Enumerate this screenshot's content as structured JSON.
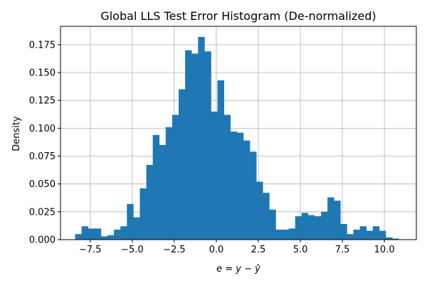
{
  "chart_data": {
    "type": "histogram",
    "title": "Global LLS Test Error Histogram (De-normalized)",
    "xlabel_parts": {
      "lhs": "e",
      "eq": " = ",
      "y1": "y",
      "minus": " − ",
      "y2": "ŷ"
    },
    "ylabel": "Density",
    "xlim": [
      -9.27,
      11.9
    ],
    "ylim": [
      0.0,
      0.1915
    ],
    "grid": true,
    "bar_color": "#1f77b4",
    "x_ticks": [
      {
        "value": -7.5,
        "label": "−7.5"
      },
      {
        "value": -5.0,
        "label": "−5.0"
      },
      {
        "value": -2.5,
        "label": "−2.5"
      },
      {
        "value": 0.0,
        "label": "0.0"
      },
      {
        "value": 2.5,
        "label": "2.5"
      },
      {
        "value": 5.0,
        "label": "5.0"
      },
      {
        "value": 7.5,
        "label": "7.5"
      },
      {
        "value": 10.0,
        "label": "10.0"
      }
    ],
    "y_ticks": [
      {
        "value": 0.0,
        "label": "0.000"
      },
      {
        "value": 0.025,
        "label": "0.025"
      },
      {
        "value": 0.05,
        "label": "0.050"
      },
      {
        "value": 0.075,
        "label": "0.075"
      },
      {
        "value": 0.1,
        "label": "0.100"
      },
      {
        "value": 0.125,
        "label": "0.125"
      },
      {
        "value": 0.15,
        "label": "0.150"
      },
      {
        "value": 0.175,
        "label": "0.175"
      }
    ],
    "bin_start": -8.4,
    "bin_width": 0.385,
    "values": [
      0.005,
      0.012,
      0.01,
      0.01,
      0.003,
      0.004,
      0.009,
      0.012,
      0.032,
      0.02,
      0.046,
      0.067,
      0.094,
      0.085,
      0.101,
      0.112,
      0.135,
      0.17,
      0.167,
      0.182,
      0.169,
      0.115,
      0.143,
      0.112,
      0.097,
      0.096,
      0.089,
      0.079,
      0.052,
      0.042,
      0.027,
      0.009,
      0.009,
      0.01,
      0.021,
      0.024,
      0.022,
      0.021,
      0.025,
      0.038,
      0.035,
      0.014,
      0.005,
      0.009,
      0.012,
      0.008,
      0.012,
      0.008,
      0.002,
      0.001
    ]
  }
}
